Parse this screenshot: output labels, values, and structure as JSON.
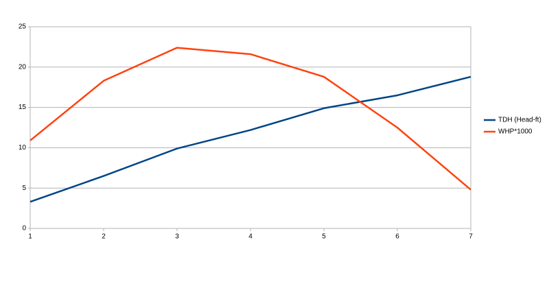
{
  "chart_data": {
    "type": "line",
    "x": [
      1,
      2,
      3,
      4,
      5,
      6,
      7
    ],
    "series": [
      {
        "name": "TDH (Head-ft)",
        "color": "#004586",
        "values": [
          3.3,
          6.5,
          9.9,
          12.2,
          14.9,
          16.5,
          18.8
        ]
      },
      {
        "name": "WHP*1000",
        "color": "#ff420e",
        "values": [
          10.9,
          18.3,
          22.4,
          21.6,
          18.8,
          12.5,
          4.8
        ]
      }
    ],
    "xlim": [
      1,
      7
    ],
    "xticks": [
      1,
      2,
      3,
      4,
      5,
      6,
      7
    ],
    "ylim": [
      0,
      25
    ],
    "yticks": [
      0,
      5,
      10,
      15,
      20,
      25
    ],
    "grid": true,
    "legend": "right"
  }
}
